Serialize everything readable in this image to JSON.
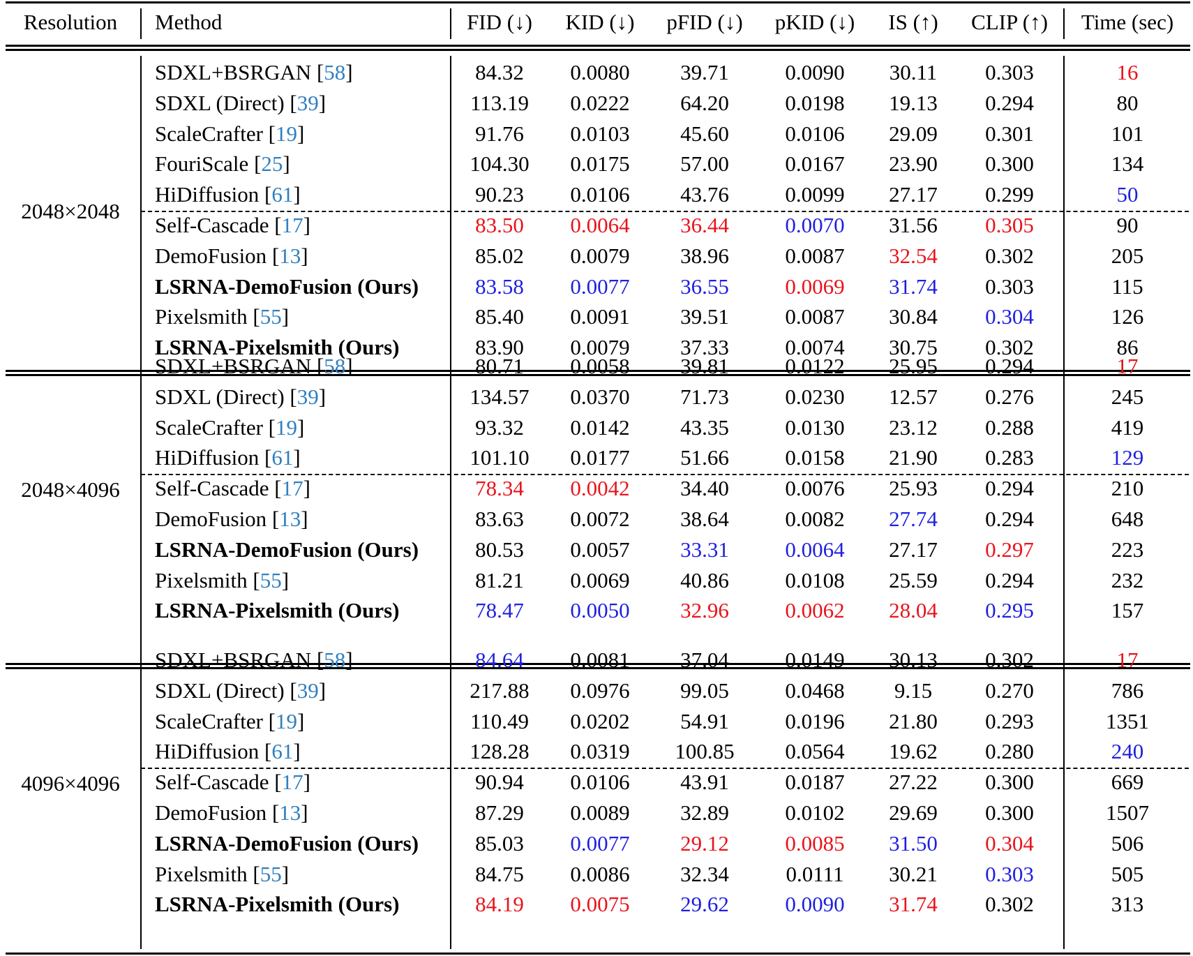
{
  "headers": {
    "resolution": "Resolution",
    "method": "Method",
    "fid": "FID (↓)",
    "kid": "KID (↓)",
    "pfid": "pFID (↓)",
    "pkid": "pKID (↓)",
    "is": "IS (↑)",
    "clip": "CLIP (↑)",
    "time": "Time (sec)"
  },
  "highlight_colors": {
    "best": "#e8141b",
    "second": "#1f1fe0",
    "citation": "#2f7fc0"
  },
  "groups": [
    {
      "resolution": "2048×2048",
      "rows": [
        {
          "name": "SDXL+BSRGAN",
          "ref": "58",
          "bold": false,
          "fid": "84.32",
          "kid": "0.0080",
          "pfid": "39.71",
          "pkid": "0.0090",
          "is": "30.11",
          "clip": "0.303",
          "time": "16",
          "colors": {
            "time": "red"
          }
        },
        {
          "name": "SDXL (Direct)",
          "ref": "39",
          "bold": false,
          "fid": "113.19",
          "kid": "0.0222",
          "pfid": "64.20",
          "pkid": "0.0198",
          "is": "19.13",
          "clip": "0.294",
          "time": "80",
          "colors": {}
        },
        {
          "name": "ScaleCrafter",
          "ref": "19",
          "bold": false,
          "fid": "91.76",
          "kid": "0.0103",
          "pfid": "45.60",
          "pkid": "0.0106",
          "is": "29.09",
          "clip": "0.301",
          "time": "101",
          "colors": {}
        },
        {
          "name": "FouriScale",
          "ref": "25",
          "bold": false,
          "fid": "104.30",
          "kid": "0.0175",
          "pfid": "57.00",
          "pkid": "0.0167",
          "is": "23.90",
          "clip": "0.300",
          "time": "134",
          "colors": {}
        },
        {
          "name": "HiDiffusion",
          "ref": "61",
          "bold": false,
          "fid": "90.23",
          "kid": "0.0106",
          "pfid": "43.76",
          "pkid": "0.0099",
          "is": "27.17",
          "clip": "0.299",
          "time": "50",
          "colors": {
            "time": "blue"
          }
        },
        {
          "name": "Self-Cascade",
          "ref": "17",
          "bold": false,
          "fid": "83.50",
          "kid": "0.0064",
          "pfid": "36.44",
          "pkid": "0.0070",
          "is": "31.56",
          "clip": "0.305",
          "time": "90",
          "colors": {
            "fid": "red",
            "kid": "red",
            "pfid": "red",
            "pkid": "blue",
            "clip": "red"
          }
        },
        {
          "name": "DemoFusion",
          "ref": "13",
          "bold": false,
          "fid": "85.02",
          "kid": "0.0079",
          "pfid": "38.96",
          "pkid": "0.0087",
          "is": "32.54",
          "clip": "0.302",
          "time": "205",
          "colors": {
            "is": "red"
          }
        },
        {
          "name": "LSRNA-DemoFusion (Ours)",
          "ref": "",
          "bold": true,
          "fid": "83.58",
          "kid": "0.0077",
          "pfid": "36.55",
          "pkid": "0.0069",
          "is": "31.74",
          "clip": "0.303",
          "time": "115",
          "colors": {
            "fid": "blue",
            "kid": "blue",
            "pfid": "blue",
            "pkid": "red",
            "is": "blue"
          }
        },
        {
          "name": "Pixelsmith",
          "ref": "55",
          "bold": false,
          "fid": "85.40",
          "kid": "0.0091",
          "pfid": "39.51",
          "pkid": "0.0087",
          "is": "30.84",
          "clip": "0.304",
          "time": "126",
          "colors": {
            "clip": "blue"
          }
        },
        {
          "name": "LSRNA-Pixelsmith (Ours)",
          "ref": "",
          "bold": true,
          "fid": "83.90",
          "kid": "0.0079",
          "pfid": "37.33",
          "pkid": "0.0074",
          "is": "30.75",
          "clip": "0.302",
          "time": "86",
          "colors": {}
        }
      ]
    },
    {
      "resolution": "2048×4096",
      "rows": [
        {
          "name": "SDXL+BSRGAN",
          "ref": "58",
          "bold": false,
          "fid": "80.71",
          "kid": "0.0058",
          "pfid": "39.81",
          "pkid": "0.0122",
          "is": "25.95",
          "clip": "0.294",
          "time": "17",
          "colors": {
            "time": "red"
          }
        },
        {
          "name": "SDXL (Direct)",
          "ref": "39",
          "bold": false,
          "fid": "134.57",
          "kid": "0.0370",
          "pfid": "71.73",
          "pkid": "0.0230",
          "is": "12.57",
          "clip": "0.276",
          "time": "245",
          "colors": {}
        },
        {
          "name": "ScaleCrafter",
          "ref": "19",
          "bold": false,
          "fid": "93.32",
          "kid": "0.0142",
          "pfid": "43.35",
          "pkid": "0.0130",
          "is": "23.12",
          "clip": "0.288",
          "time": "419",
          "colors": {}
        },
        {
          "name": "HiDiffusion",
          "ref": "61",
          "bold": false,
          "fid": "101.10",
          "kid": "0.0177",
          "pfid": "51.66",
          "pkid": "0.0158",
          "is": "21.90",
          "clip": "0.283",
          "time": "129",
          "colors": {
            "time": "blue"
          }
        },
        {
          "name": "Self-Cascade",
          "ref": "17",
          "bold": false,
          "fid": "78.34",
          "kid": "0.0042",
          "pfid": "34.40",
          "pkid": "0.0076",
          "is": "25.93",
          "clip": "0.294",
          "time": "210",
          "colors": {
            "fid": "red",
            "kid": "red"
          }
        },
        {
          "name": "DemoFusion",
          "ref": "13",
          "bold": false,
          "fid": "83.63",
          "kid": "0.0072",
          "pfid": "38.64",
          "pkid": "0.0082",
          "is": "27.74",
          "clip": "0.294",
          "time": "648",
          "colors": {
            "is": "blue"
          }
        },
        {
          "name": "LSRNA-DemoFusion (Ours)",
          "ref": "",
          "bold": true,
          "fid": "80.53",
          "kid": "0.0057",
          "pfid": "33.31",
          "pkid": "0.0064",
          "is": "27.17",
          "clip": "0.297",
          "time": "223",
          "colors": {
            "pfid": "blue",
            "pkid": "blue",
            "clip": "red"
          }
        },
        {
          "name": "Pixelsmith",
          "ref": "55",
          "bold": false,
          "fid": "81.21",
          "kid": "0.0069",
          "pfid": "40.86",
          "pkid": "0.0108",
          "is": "25.59",
          "clip": "0.294",
          "time": "232",
          "colors": {}
        },
        {
          "name": "LSRNA-Pixelsmith (Ours)",
          "ref": "",
          "bold": true,
          "fid": "78.47",
          "kid": "0.0050",
          "pfid": "32.96",
          "pkid": "0.0062",
          "is": "28.04",
          "clip": "0.295",
          "time": "157",
          "colors": {
            "fid": "blue",
            "kid": "blue",
            "pfid": "red",
            "pkid": "red",
            "is": "red",
            "clip": "blue"
          }
        }
      ]
    },
    {
      "resolution": "4096×4096",
      "rows": [
        {
          "name": "SDXL+BSRGAN",
          "ref": "58",
          "bold": false,
          "fid": "84.64",
          "kid": "0.0081",
          "pfid": "37.04",
          "pkid": "0.0149",
          "is": "30.13",
          "clip": "0.302",
          "time": "17",
          "colors": {
            "fid": "blue",
            "time": "red"
          }
        },
        {
          "name": "SDXL (Direct)",
          "ref": "39",
          "bold": false,
          "fid": "217.88",
          "kid": "0.0976",
          "pfid": "99.05",
          "pkid": "0.0468",
          "is": "9.15",
          "clip": "0.270",
          "time": "786",
          "colors": {}
        },
        {
          "name": "ScaleCrafter",
          "ref": "19",
          "bold": false,
          "fid": "110.49",
          "kid": "0.0202",
          "pfid": "54.91",
          "pkid": "0.0196",
          "is": "21.80",
          "clip": "0.293",
          "time": "1351",
          "colors": {}
        },
        {
          "name": "HiDiffusion",
          "ref": "61",
          "bold": false,
          "fid": "128.28",
          "kid": "0.0319",
          "pfid": "100.85",
          "pkid": "0.0564",
          "is": "19.62",
          "clip": "0.280",
          "time": "240",
          "colors": {
            "time": "blue"
          }
        },
        {
          "name": "Self-Cascade",
          "ref": "17",
          "bold": false,
          "fid": "90.94",
          "kid": "0.0106",
          "pfid": "43.91",
          "pkid": "0.0187",
          "is": "27.22",
          "clip": "0.300",
          "time": "669",
          "colors": {}
        },
        {
          "name": "DemoFusion",
          "ref": "13",
          "bold": false,
          "fid": "87.29",
          "kid": "0.0089",
          "pfid": "32.89",
          "pkid": "0.0102",
          "is": "29.69",
          "clip": "0.300",
          "time": "1507",
          "colors": {}
        },
        {
          "name": "LSRNA-DemoFusion (Ours)",
          "ref": "",
          "bold": true,
          "fid": "85.03",
          "kid": "0.0077",
          "pfid": "29.12",
          "pkid": "0.0085",
          "is": "31.50",
          "clip": "0.304",
          "time": "506",
          "colors": {
            "kid": "blue",
            "pfid": "red",
            "pkid": "red",
            "is": "blue",
            "clip": "red"
          }
        },
        {
          "name": "Pixelsmith",
          "ref": "55",
          "bold": false,
          "fid": "84.75",
          "kid": "0.0086",
          "pfid": "32.34",
          "pkid": "0.0111",
          "is": "30.21",
          "clip": "0.303",
          "time": "505",
          "colors": {
            "clip": "blue"
          }
        },
        {
          "name": "LSRNA-Pixelsmith (Ours)",
          "ref": "",
          "bold": true,
          "fid": "84.19",
          "kid": "0.0075",
          "pfid": "29.62",
          "pkid": "0.0090",
          "is": "31.74",
          "clip": "0.302",
          "time": "313",
          "colors": {
            "fid": "red",
            "kid": "red",
            "pfid": "blue",
            "pkid": "blue",
            "is": "red"
          }
        }
      ]
    }
  ]
}
